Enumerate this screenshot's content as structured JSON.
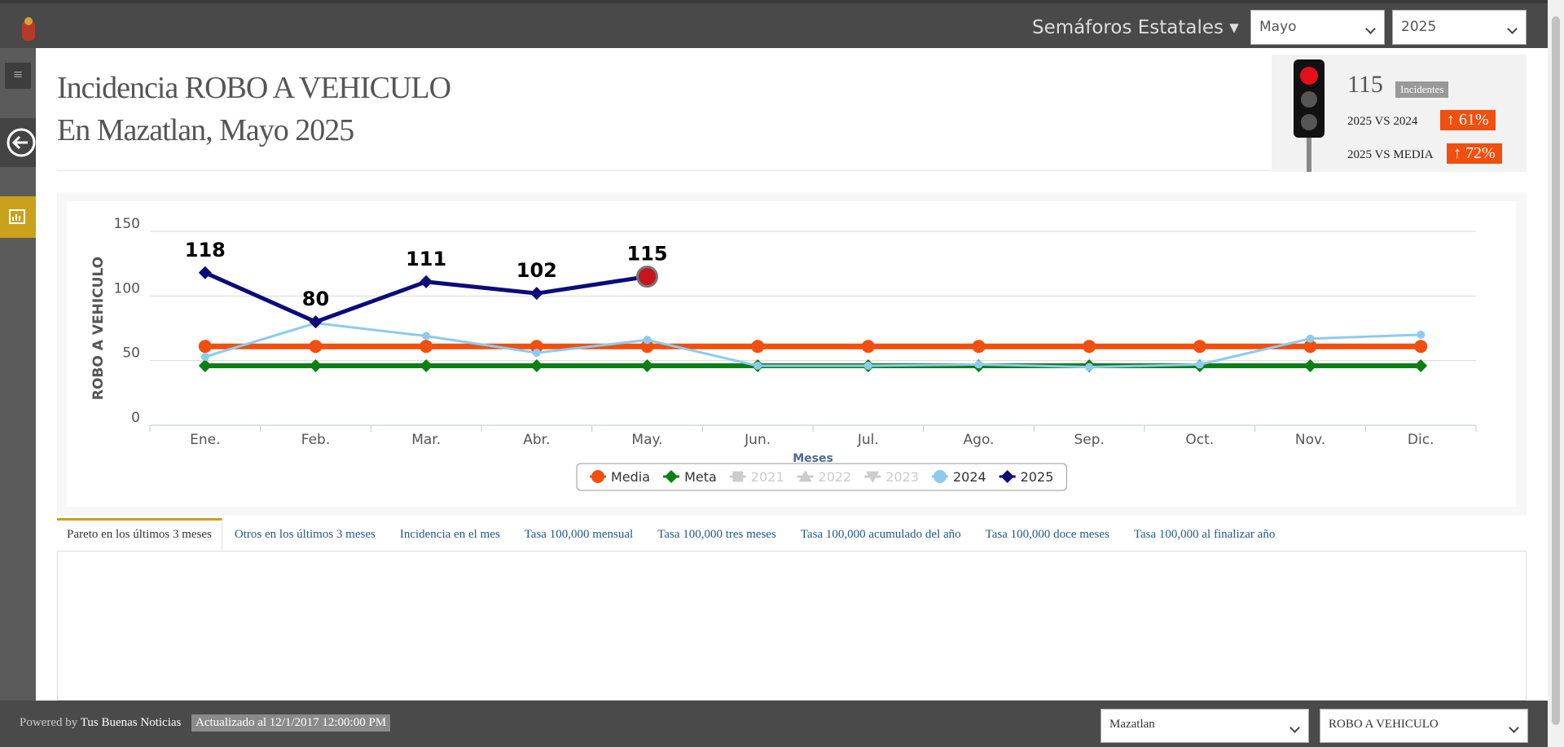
{
  "header": {
    "nav": "Semáforos Estatales",
    "month": "Mayo",
    "year": "2025"
  },
  "title": {
    "line1": "Incidencia ROBO A VEHICULO",
    "line2": "En Mazatlan, Mayo 2025"
  },
  "stats": {
    "value": "115",
    "value_label": "Incidentes",
    "comparisons": [
      {
        "label": "2025 VS 2024",
        "value": "61%"
      },
      {
        "label": "2025 VS MEDIA",
        "value": "72%"
      }
    ]
  },
  "chart_data": {
    "type": "line",
    "x_label": "Meses",
    "y_label": "ROBO A VEHICULO",
    "categories": [
      "Ene.",
      "Feb.",
      "Mar.",
      "Abr.",
      "May.",
      "Jun.",
      "Jul.",
      "Ago.",
      "Sep.",
      "Oct.",
      "Nov.",
      "Dic."
    ],
    "ylim": [
      0,
      150
    ],
    "yticks": [
      0,
      50,
      100,
      150
    ],
    "grid": true,
    "series": [
      {
        "name": "Media",
        "color": "#f04f10",
        "marker": "circle",
        "values": [
          61,
          61,
          61,
          61,
          61,
          61,
          61,
          61,
          61,
          61,
          61,
          61
        ]
      },
      {
        "name": "Meta",
        "color": "#0b7f14",
        "marker": "diamond",
        "values": [
          46,
          46,
          46,
          46,
          46,
          46,
          46,
          46,
          46,
          46,
          46,
          46
        ]
      },
      {
        "name": "2021",
        "color": "#cccccc",
        "marker": "square",
        "visible": false
      },
      {
        "name": "2022",
        "color": "#cccccc",
        "marker": "triangle",
        "visible": false
      },
      {
        "name": "2023",
        "color": "#cccccc",
        "marker": "triangle-down",
        "visible": false
      },
      {
        "name": "2024",
        "color": "#8ccbee",
        "marker": "circle",
        "values": [
          53,
          79,
          69,
          56,
          66,
          46,
          46,
          47,
          45,
          47,
          67,
          70
        ]
      },
      {
        "name": "2025",
        "color": "#0b0b7a",
        "marker": "diamond",
        "data_labels": true,
        "values": [
          118,
          80,
          111,
          102,
          115,
          null,
          null,
          null,
          null,
          null,
          null,
          null
        ]
      }
    ]
  },
  "tabs": [
    "Pareto en los últimos 3 meses",
    "Otros en los últimos 3 meses",
    "Incidencia en el mes",
    "Tasa 100,000 mensual",
    "Tasa 100,000 tres meses",
    "Tasa 100,000 acumulado del año",
    "Tasa 100,000 doce meses",
    "Tasa 100,000 al finalizar año"
  ],
  "footer": {
    "powered": "Powered by",
    "brand": "Tus Buenas Noticias",
    "updated": "Actualizado al 12/1/2017 12:00:00 PM",
    "place": "Mazatlan",
    "crime": "ROBO A VEHICULO"
  }
}
